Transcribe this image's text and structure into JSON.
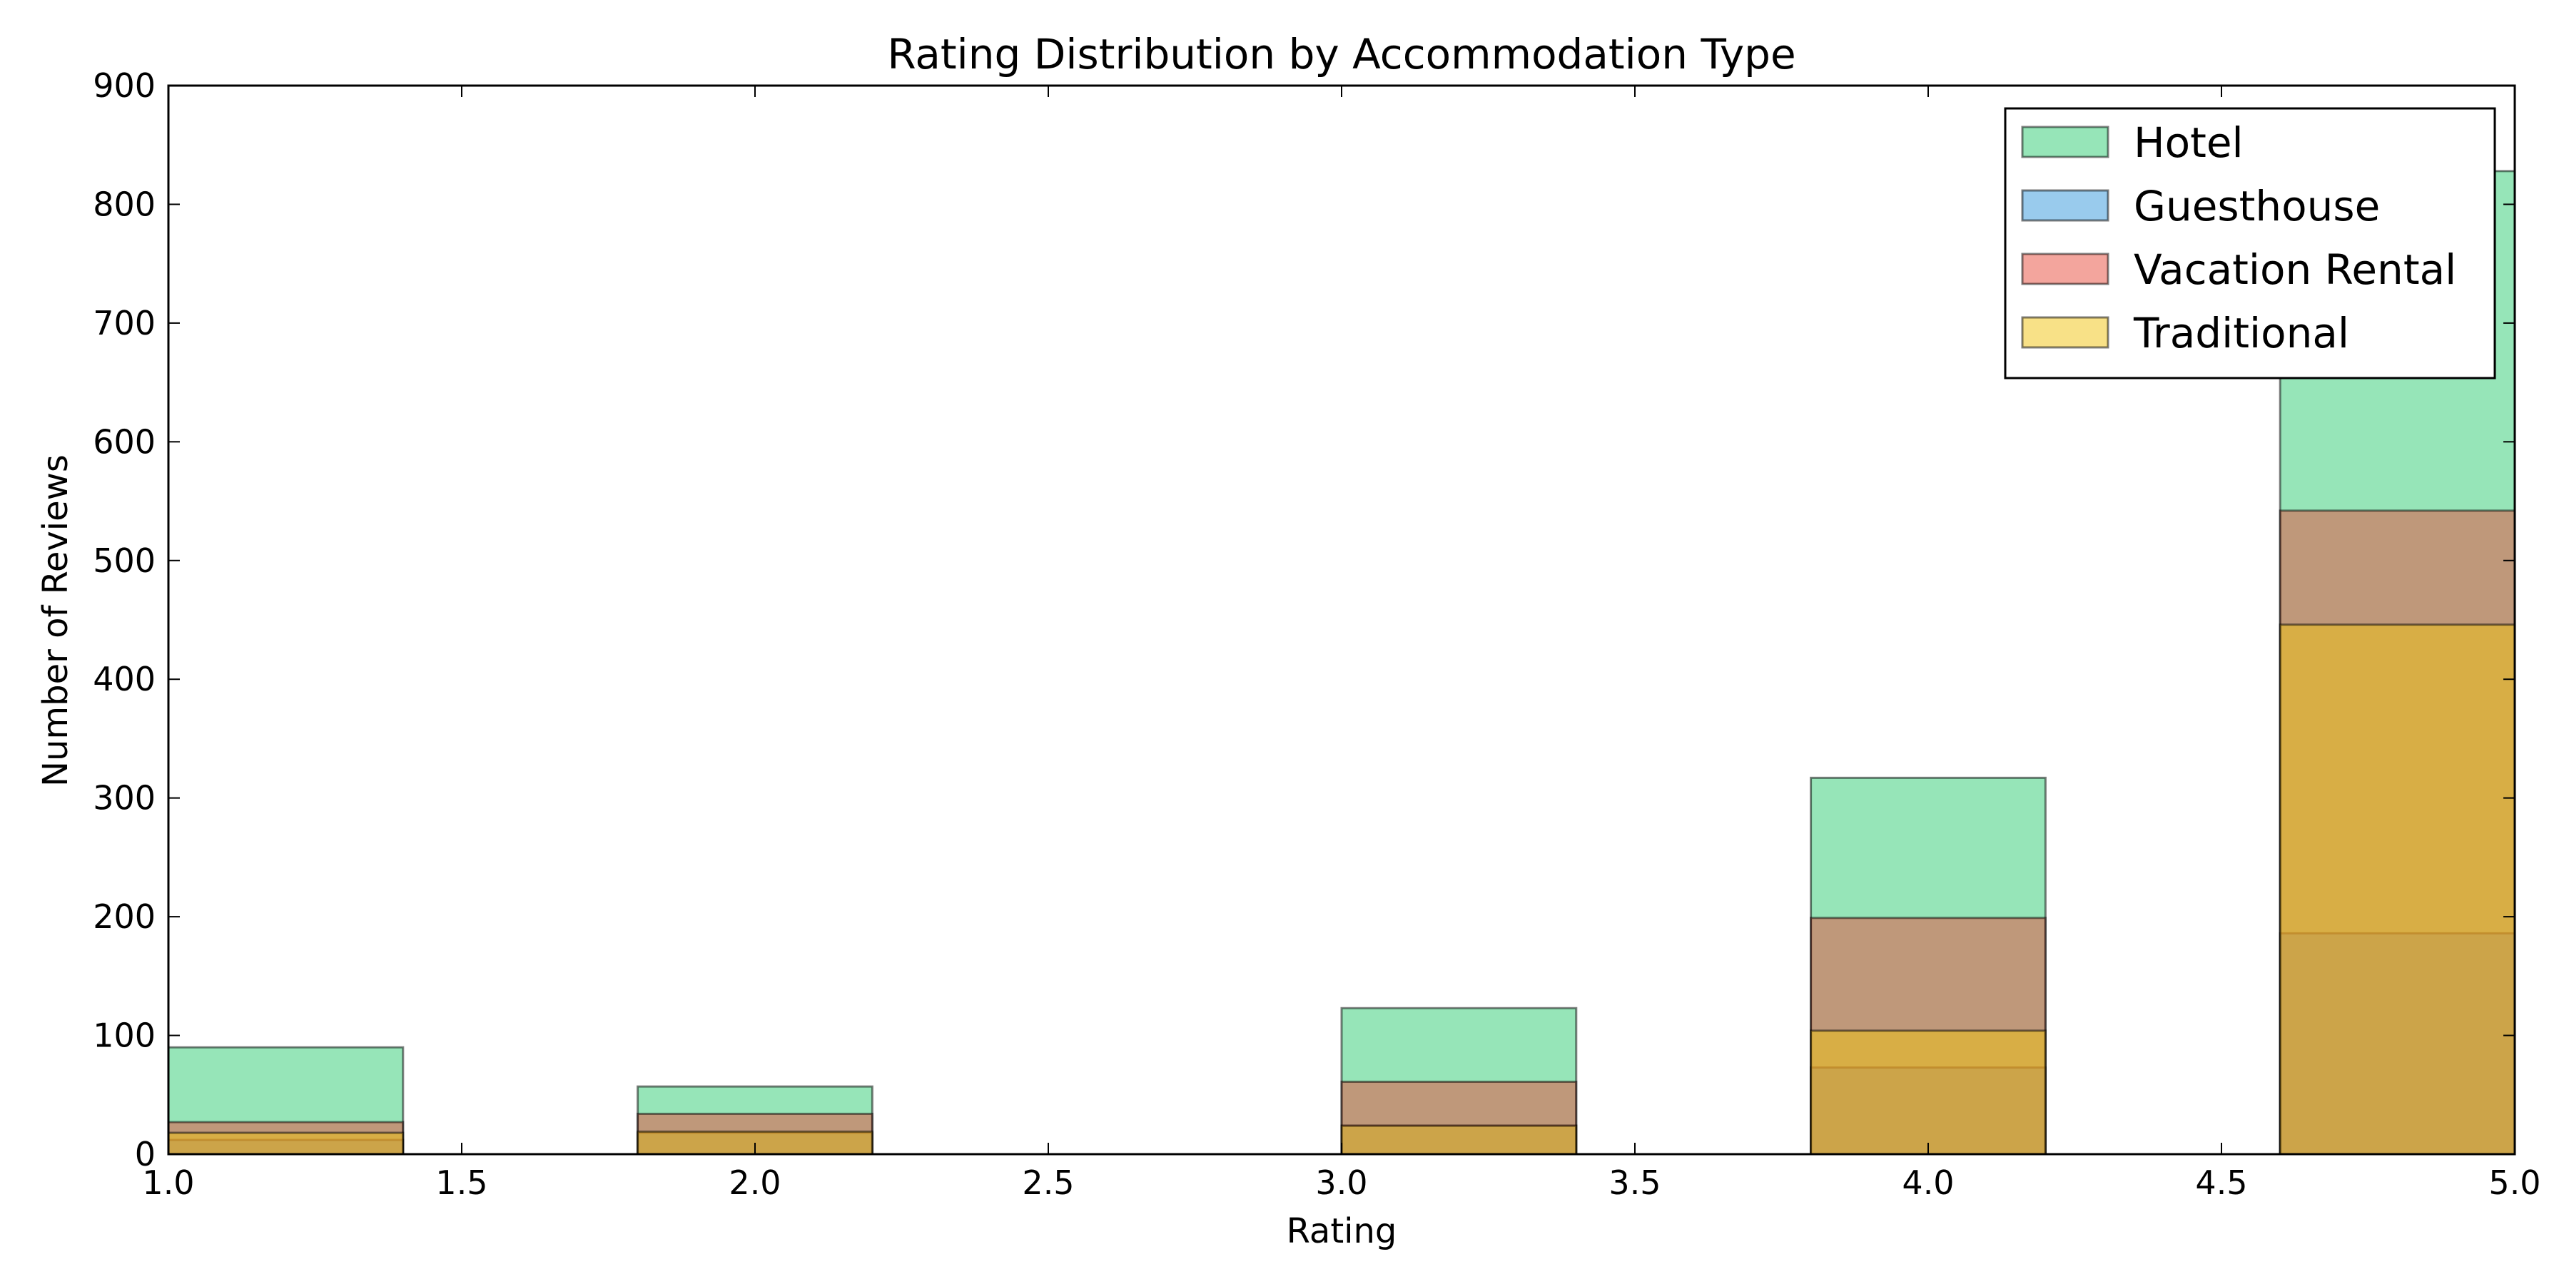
{
  "chart_data": {
    "type": "bar",
    "title": "Rating Distribution by Accommodation Type",
    "xlabel": "Rating",
    "ylabel": "Number of Reviews",
    "xlim": [
      1.0,
      5.0
    ],
    "ylim": [
      0,
      900
    ],
    "xticks": [
      "1.0",
      "1.5",
      "2.0",
      "2.5",
      "3.0",
      "3.5",
      "4.0",
      "4.5",
      "5.0"
    ],
    "yticks": [
      "0",
      "100",
      "200",
      "300",
      "400",
      "500",
      "600",
      "700",
      "800",
      "900"
    ],
    "bins": [
      {
        "x0": 1.0,
        "x1": 1.4
      },
      {
        "x0": 1.8,
        "x1": 2.2
      },
      {
        "x0": 3.0,
        "x1": 3.4
      },
      {
        "x0": 3.8,
        "x1": 4.2
      },
      {
        "x0": 4.6,
        "x1": 5.0
      }
    ],
    "categories": [
      "1",
      "2",
      "3",
      "4",
      "5"
    ],
    "series": [
      {
        "name": "Hotel",
        "color": "#2ecc71",
        "values": [
          90,
          57,
          123,
          317,
          828
        ]
      },
      {
        "name": "Guesthouse",
        "color": "#3498db",
        "values": [
          12,
          18,
          24,
          73,
          186
        ]
      },
      {
        "name": "Vacation Rental",
        "color": "#e74c3c",
        "values": [
          27,
          34,
          61,
          199,
          542
        ]
      },
      {
        "name": "Traditional",
        "color": "#f1c40f",
        "values": [
          18,
          19,
          24,
          104,
          446
        ]
      }
    ],
    "legend_position": "top-right",
    "grid": false
  }
}
